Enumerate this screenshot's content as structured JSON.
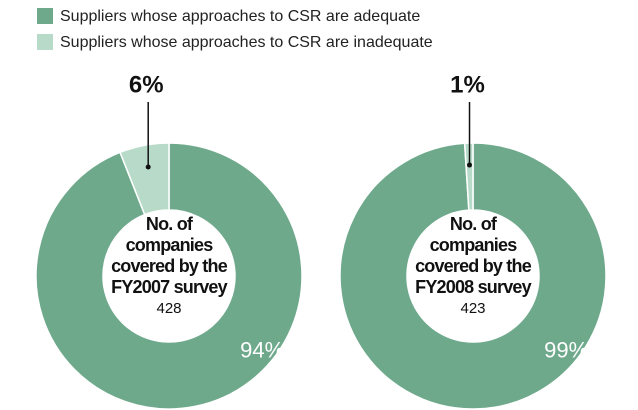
{
  "legend": {
    "items": [
      {
        "name": "Suppliers whose approaches to CSR are adequate",
        "color": "#6ea98c"
      },
      {
        "name": "Suppliers whose approaches to CSR are inadequate",
        "color": "#b8dbc9"
      }
    ]
  },
  "chart_data": [
    {
      "type": "pie",
      "donut": true,
      "values": [
        94,
        6
      ],
      "value_labels": [
        "94%",
        "6%"
      ],
      "center_title": "No. of companies covered by the FY2007 survey",
      "count": 428
    },
    {
      "type": "pie",
      "donut": true,
      "values": [
        99,
        1
      ],
      "value_labels": [
        "99%",
        "1%"
      ],
      "center_title": "No. of companies covered by the FY2008 survey",
      "count": 423
    }
  ]
}
